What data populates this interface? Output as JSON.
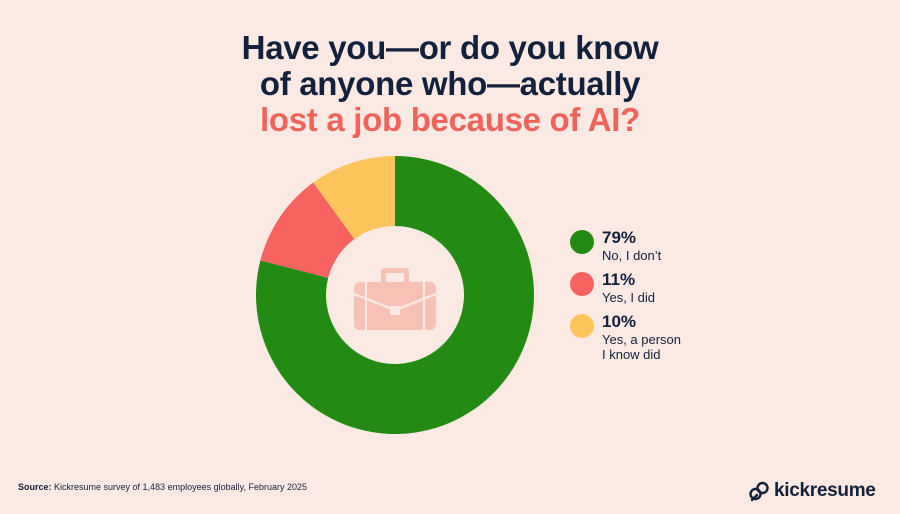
{
  "title": {
    "line1": "Have you—or do you know",
    "line2": "of anyone who—actually",
    "line3": "lost a job because of AI?"
  },
  "colors": {
    "background": "#fbe9e3",
    "title": "#14213d",
    "accent": "#f0635a",
    "icon": "#f7c1b6"
  },
  "chart_data": {
    "type": "pie",
    "donut": true,
    "center_icon": "briefcase-icon",
    "legend_position": "right",
    "slices": [
      {
        "label": "No, I don’t",
        "value": 79,
        "value_label": "79%",
        "color": "#238b13"
      },
      {
        "label": "Yes, I did",
        "value": 11,
        "value_label": "11%",
        "color": "#f76360"
      },
      {
        "label": "Yes, a person\nI know did",
        "value": 10,
        "value_label": "10%",
        "color": "#fec55d"
      }
    ]
  },
  "source": {
    "prefix": "Source:",
    "text": " Kickresume survey of 1,483 employees globally, February 2025"
  },
  "brand": {
    "icon": "kickresume-logo-icon",
    "name": "kickresume"
  }
}
